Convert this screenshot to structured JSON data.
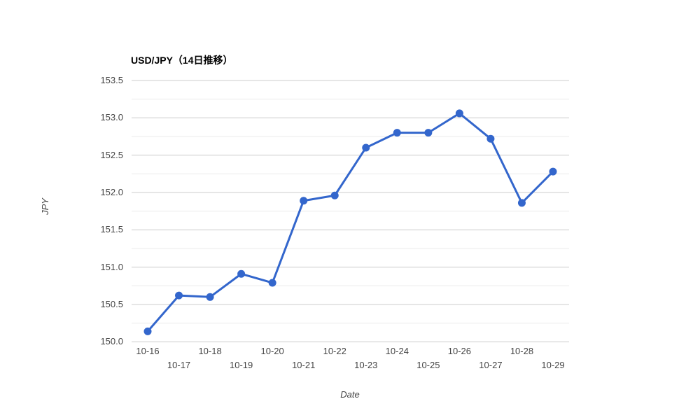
{
  "chart_data": {
    "type": "line",
    "title": "USD/JPY（14日推移）",
    "xlabel": "Date",
    "ylabel": "JPY",
    "x": [
      "10-16",
      "10-17",
      "10-18",
      "10-19",
      "10-20",
      "10-21",
      "10-22",
      "10-23",
      "10-24",
      "10-25",
      "10-26",
      "10-27",
      "10-28",
      "10-29"
    ],
    "series": [
      {
        "name": "USD/JPY",
        "values": [
          150.14,
          150.62,
          150.6,
          150.91,
          150.79,
          151.89,
          151.96,
          152.6,
          152.8,
          152.8,
          153.06,
          152.72,
          151.86,
          152.28
        ]
      }
    ],
    "ylim": [
      150.0,
      153.5
    ],
    "y_major_ticks": [
      150.0,
      150.5,
      151.0,
      151.5,
      152.0,
      152.5,
      153.0,
      153.5
    ],
    "y_minor_step": 0.25,
    "y_tick_decimals": 1,
    "grid": "horizontal",
    "legend_position": "none",
    "x_tick_stagger": true,
    "colors": {
      "series": "#3366cc",
      "grid_major": "#cccccc",
      "grid_minor": "#ebebeb",
      "tick_text": "#444444",
      "title_text": "#000000",
      "background": "#ffffff"
    }
  }
}
